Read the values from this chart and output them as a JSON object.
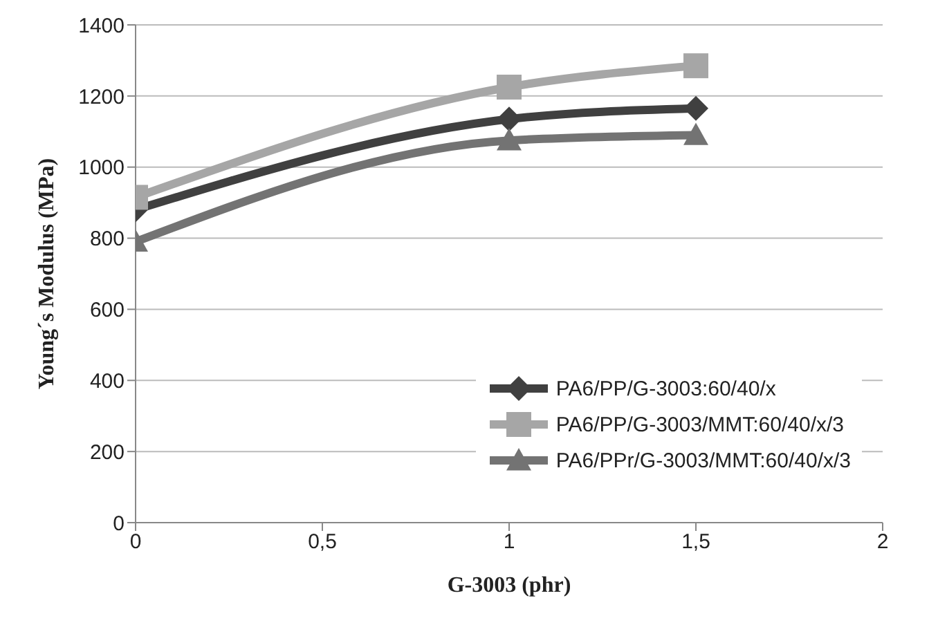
{
  "chart_data": {
    "type": "line",
    "xlabel": "G-3003 (phr)",
    "ylabel": "Young´s Modulus (MPa)",
    "x": [
      0,
      1,
      1.5
    ],
    "series": [
      {
        "name": "PA6/PP/G-3003:60/40/x",
        "color": "#404040",
        "marker": "diamond",
        "values": [
          880,
          1135,
          1165
        ]
      },
      {
        "name": "PA6/PP/G-3003/MMT:60/40/x/3",
        "color": "#a6a6a6",
        "marker": "square",
        "values": [
          915,
          1225,
          1285
        ]
      },
      {
        "name": "PA6/PPr/G-3003/MMT:60/40/x/3",
        "color": "#737373",
        "marker": "triangle",
        "values": [
          790,
          1075,
          1090
        ]
      }
    ],
    "xlim": [
      0,
      2
    ],
    "xticks": [
      0,
      {
        "value": 0.5,
        "label": "0,5"
      },
      1,
      {
        "value": 1.5,
        "label": "1,5"
      },
      2
    ],
    "ylim": [
      0,
      1400
    ],
    "yticks": [
      0,
      200,
      400,
      600,
      800,
      1000,
      1200,
      1400
    ],
    "grid": "y",
    "legend": "bottom right"
  }
}
